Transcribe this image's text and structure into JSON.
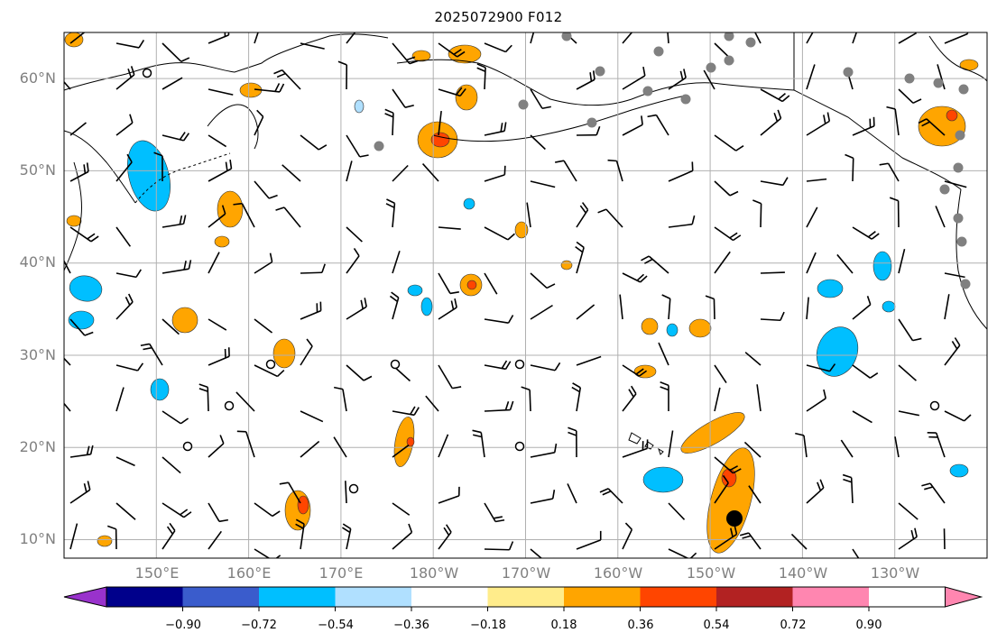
{
  "title": "2025072900 F012",
  "map": {
    "projection": "PlateCarree",
    "lon_range": [
      140,
      240
    ],
    "lat_range": [
      8,
      65
    ],
    "gridlines": true,
    "wind_barbs": true,
    "station_markers": "gray dots along Alaska / Pacific NW coast",
    "tropical_marker": "black filled circle near 12N 147W",
    "lat_ticks": [
      "10°N",
      "20°N",
      "30°N",
      "40°N",
      "50°N",
      "60°N"
    ],
    "lon_ticks": [
      "150°E",
      "160°E",
      "170°E",
      "180°W",
      "170°W",
      "160°W",
      "150°W",
      "140°W",
      "130°W"
    ]
  },
  "colorbar": {
    "levels": [
      "−0.90",
      "−0.72",
      "−0.54",
      "−0.36",
      "−0.18",
      "0.18",
      "0.36",
      "0.54",
      "0.72",
      "0.90"
    ],
    "colors": [
      "#9932cc",
      "#00008b",
      "#3a5ccc",
      "#00bfff",
      "#b0e0ff",
      "#ffffff",
      "#ffec8b",
      "#ffa500",
      "#ff4500",
      "#b22222",
      "#ff86b0"
    ],
    "extend": "both"
  },
  "colors": {
    "land_line": "#000000",
    "grid": "#b0b0b0",
    "station": "#808080",
    "positive_fill": "#ffa500",
    "positive_strong": "#ff4500",
    "negative_fill": "#00bfff",
    "negative_weak": "#b0e0ff"
  }
}
